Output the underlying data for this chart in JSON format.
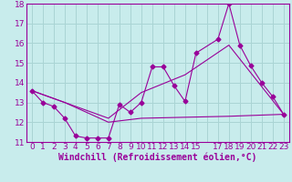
{
  "xlabel": "Windchill (Refroidissement éolien,°C)",
  "background_color": "#c8ecec",
  "grid_color": "#aad4d4",
  "line_color": "#990099",
  "xlim": [
    -0.5,
    23.5
  ],
  "ylim": [
    11,
    18
  ],
  "yticks": [
    11,
    12,
    13,
    14,
    15,
    16,
    17,
    18
  ],
  "xlabels": [
    "0",
    "1",
    "2",
    "3",
    "4",
    "5",
    "6",
    "7",
    "8",
    "9",
    "10",
    "11",
    "12",
    "13",
    "14",
    "15",
    "17",
    "18",
    "19",
    "20",
    "21",
    "22",
    "23"
  ],
  "line1_x": [
    0,
    1,
    2,
    3,
    4,
    5,
    6,
    7,
    8,
    9,
    10,
    11,
    12,
    13,
    14,
    15,
    17,
    18,
    19,
    20,
    21,
    22,
    23
  ],
  "line1_y": [
    13.6,
    13.0,
    12.8,
    12.2,
    11.3,
    11.2,
    11.2,
    11.2,
    12.9,
    12.5,
    13.0,
    14.8,
    14.8,
    13.85,
    13.05,
    15.5,
    16.2,
    18.0,
    15.9,
    14.85,
    14.0,
    13.3,
    12.4
  ],
  "line2_x": [
    0,
    3,
    7,
    10,
    14,
    18,
    23
  ],
  "line2_y": [
    13.6,
    13.0,
    12.2,
    13.5,
    14.4,
    15.9,
    12.4
  ],
  "line3_x": [
    0,
    3,
    7,
    10,
    14,
    18,
    23
  ],
  "line3_y": [
    13.6,
    13.0,
    12.0,
    12.2,
    12.25,
    12.3,
    12.4
  ],
  "font_color": "#990099",
  "tick_fontsize": 6.5,
  "label_fontsize": 7.0
}
